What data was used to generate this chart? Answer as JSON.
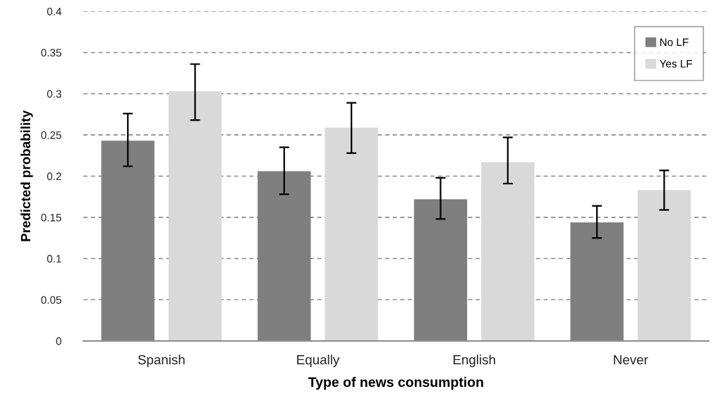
{
  "chart_data": {
    "type": "bar",
    "xlabel": "Type of news consumption",
    "ylabel": "Predicted probability",
    "categories": [
      "Spanish",
      "Equally",
      "English",
      "Never"
    ],
    "series": [
      {
        "name": "No LF",
        "color": "#7f7f7f",
        "values": [
          0.243,
          0.206,
          0.172,
          0.144
        ],
        "errors": [
          [
            0.212,
            0.276
          ],
          [
            0.178,
            0.235
          ],
          [
            0.148,
            0.198
          ],
          [
            0.125,
            0.164
          ]
        ]
      },
      {
        "name": "Yes LF",
        "color": "#d9d9d9",
        "values": [
          0.303,
          0.259,
          0.217,
          0.183
        ],
        "errors": [
          [
            0.268,
            0.336
          ],
          [
            0.228,
            0.289
          ],
          [
            0.191,
            0.247
          ],
          [
            0.159,
            0.207
          ]
        ]
      }
    ],
    "ylim": [
      0,
      0.4
    ],
    "yticks": [
      0,
      0.05,
      0.1,
      0.15,
      0.2,
      0.25,
      0.3,
      0.35,
      0.4
    ],
    "grid": "y",
    "legend": "top right"
  }
}
